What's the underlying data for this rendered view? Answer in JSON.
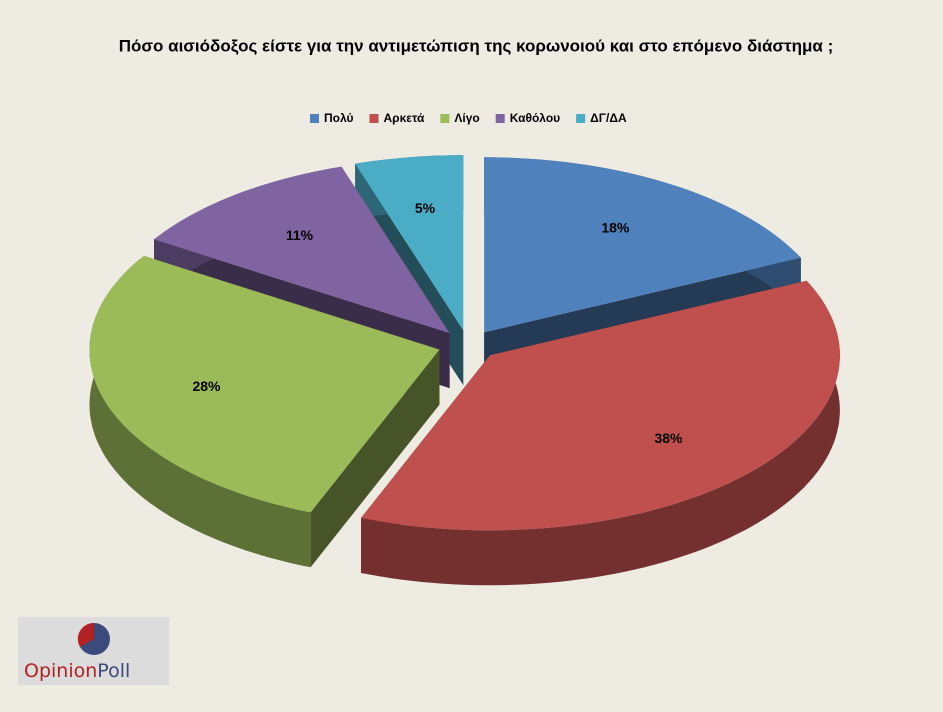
{
  "chart_data": {
    "type": "pie3d",
    "title": "Πόσο αισιόδοξος είστε για την αντιμετώπιση της κορωνοιού και στο επόμενο διάστημα ;",
    "categories": [
      "Πολύ",
      "Αρκετά",
      "Λίγο",
      "Καθόλου",
      "ΔΓ/ΔΑ"
    ],
    "values": [
      18,
      38,
      28,
      11,
      5
    ],
    "value_labels": [
      "18%",
      "38%",
      "28%",
      "11%",
      "5%"
    ],
    "colors": [
      "#4f81bd",
      "#c0504d",
      "#9bbb59",
      "#8064a2",
      "#4bacc6"
    ],
    "legend": "top"
  },
  "logo": {
    "first": "Opinion",
    "second": "Poll"
  }
}
